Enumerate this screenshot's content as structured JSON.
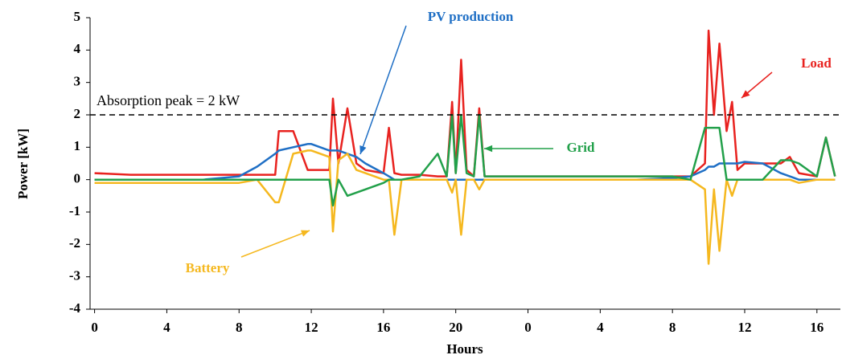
{
  "chart_data": {
    "type": "line",
    "x_label": "Hours",
    "y_label": "Power [kW]",
    "x": [
      0,
      2,
      4,
      6,
      8,
      9,
      10,
      10.2,
      11,
      11.8,
      12,
      13,
      13.2,
      13.5,
      14,
      14.5,
      15,
      16,
      16.3,
      16.6,
      17,
      18,
      19,
      19.5,
      19.8,
      20,
      20.3,
      20.6,
      21,
      21.3,
      21.6,
      22,
      24,
      26,
      28,
      30,
      32,
      33,
      33.8,
      34,
      34.3,
      34.6,
      35,
      35.3,
      35.6,
      36,
      37,
      38,
      38.5,
      39,
      40,
      40.5,
      41
    ],
    "series": [
      {
        "name": "Load",
        "color": "#e8221f",
        "values": [
          0.2,
          0.15,
          0.15,
          0.15,
          0.15,
          0.15,
          0.15,
          1.5,
          1.5,
          0.3,
          0.3,
          0.3,
          2.5,
          0.5,
          2.2,
          0.5,
          0.3,
          0.2,
          1.6,
          0.2,
          0.15,
          0.15,
          0.1,
          0.1,
          2.4,
          0.2,
          3.7,
          0.3,
          0.1,
          2.2,
          0.1,
          0.1,
          0.1,
          0.1,
          0.1,
          0.1,
          0.1,
          0.1,
          0.5,
          4.6,
          2.0,
          4.2,
          1.5,
          2.4,
          0.3,
          0.5,
          0.5,
          0.5,
          0.7,
          0.2,
          0.1,
          1.3,
          0.1
        ]
      },
      {
        "name": "PV production",
        "color": "#1f6fc5",
        "values": [
          0,
          0,
          0,
          0,
          0.1,
          0.4,
          0.8,
          0.9,
          1,
          1.1,
          1.1,
          0.9,
          0.9,
          0.9,
          0.8,
          0.7,
          0.5,
          0.2,
          0.1,
          0,
          0,
          0,
          0,
          0,
          0,
          0,
          0,
          0,
          0,
          0,
          0,
          0,
          0,
          0,
          0,
          0,
          0.05,
          0.1,
          0.3,
          0.4,
          0.4,
          0.5,
          0.5,
          0.5,
          0.5,
          0.55,
          0.5,
          0.2,
          0.1,
          0,
          0,
          0,
          0
        ]
      },
      {
        "name": "Battery",
        "color": "#f5b81f",
        "values": [
          -0.1,
          -0.1,
          -0.1,
          -0.1,
          -0.1,
          0,
          -0.7,
          -0.7,
          0.8,
          0.9,
          0.9,
          0.7,
          -1.6,
          0.6,
          0.8,
          0.3,
          0.2,
          0,
          0,
          -1.7,
          0,
          0,
          0,
          0,
          -0.4,
          0,
          -1.7,
          0,
          0,
          -0.3,
          0,
          0,
          0,
          0,
          0,
          0,
          0,
          0,
          -0.3,
          -2.6,
          -0.3,
          -2.2,
          0,
          -0.5,
          0,
          0,
          0,
          0,
          0,
          -0.1,
          0,
          0,
          0
        ]
      },
      {
        "name": "Grid",
        "color": "#22a04a",
        "values": [
          0,
          0,
          0,
          0,
          0,
          0,
          0,
          0,
          0,
          0,
          0,
          0,
          -0.8,
          0,
          -0.5,
          -0.4,
          -0.3,
          -0.1,
          0,
          0,
          0,
          0.1,
          0.8,
          0.1,
          2,
          0.2,
          2,
          0.2,
          0.1,
          2,
          0.1,
          0.1,
          0.1,
          0.1,
          0.1,
          0.1,
          0.1,
          0,
          1.6,
          1.6,
          1.6,
          1.6,
          0,
          0,
          0,
          0,
          0,
          0.6,
          0.6,
          0.5,
          0.1,
          1.3,
          0.1
        ]
      }
    ],
    "hline": {
      "value": 2,
      "label": "Absorption peak = 2 kW"
    },
    "xlim": [
      -0.25,
      41.3
    ],
    "xticks": [
      0,
      4,
      8,
      12,
      16,
      20,
      {
        "value": 24,
        "label": "0"
      },
      {
        "value": 28,
        "label": "4"
      },
      {
        "value": 32,
        "label": "8"
      },
      {
        "value": 36,
        "label": "12"
      },
      {
        "value": 40,
        "label": "16"
      }
    ],
    "ylim": [
      -4,
      5
    ],
    "yticks": [
      -4,
      -3,
      -2,
      -1,
      0,
      1,
      2,
      3,
      4,
      5
    ]
  }
}
